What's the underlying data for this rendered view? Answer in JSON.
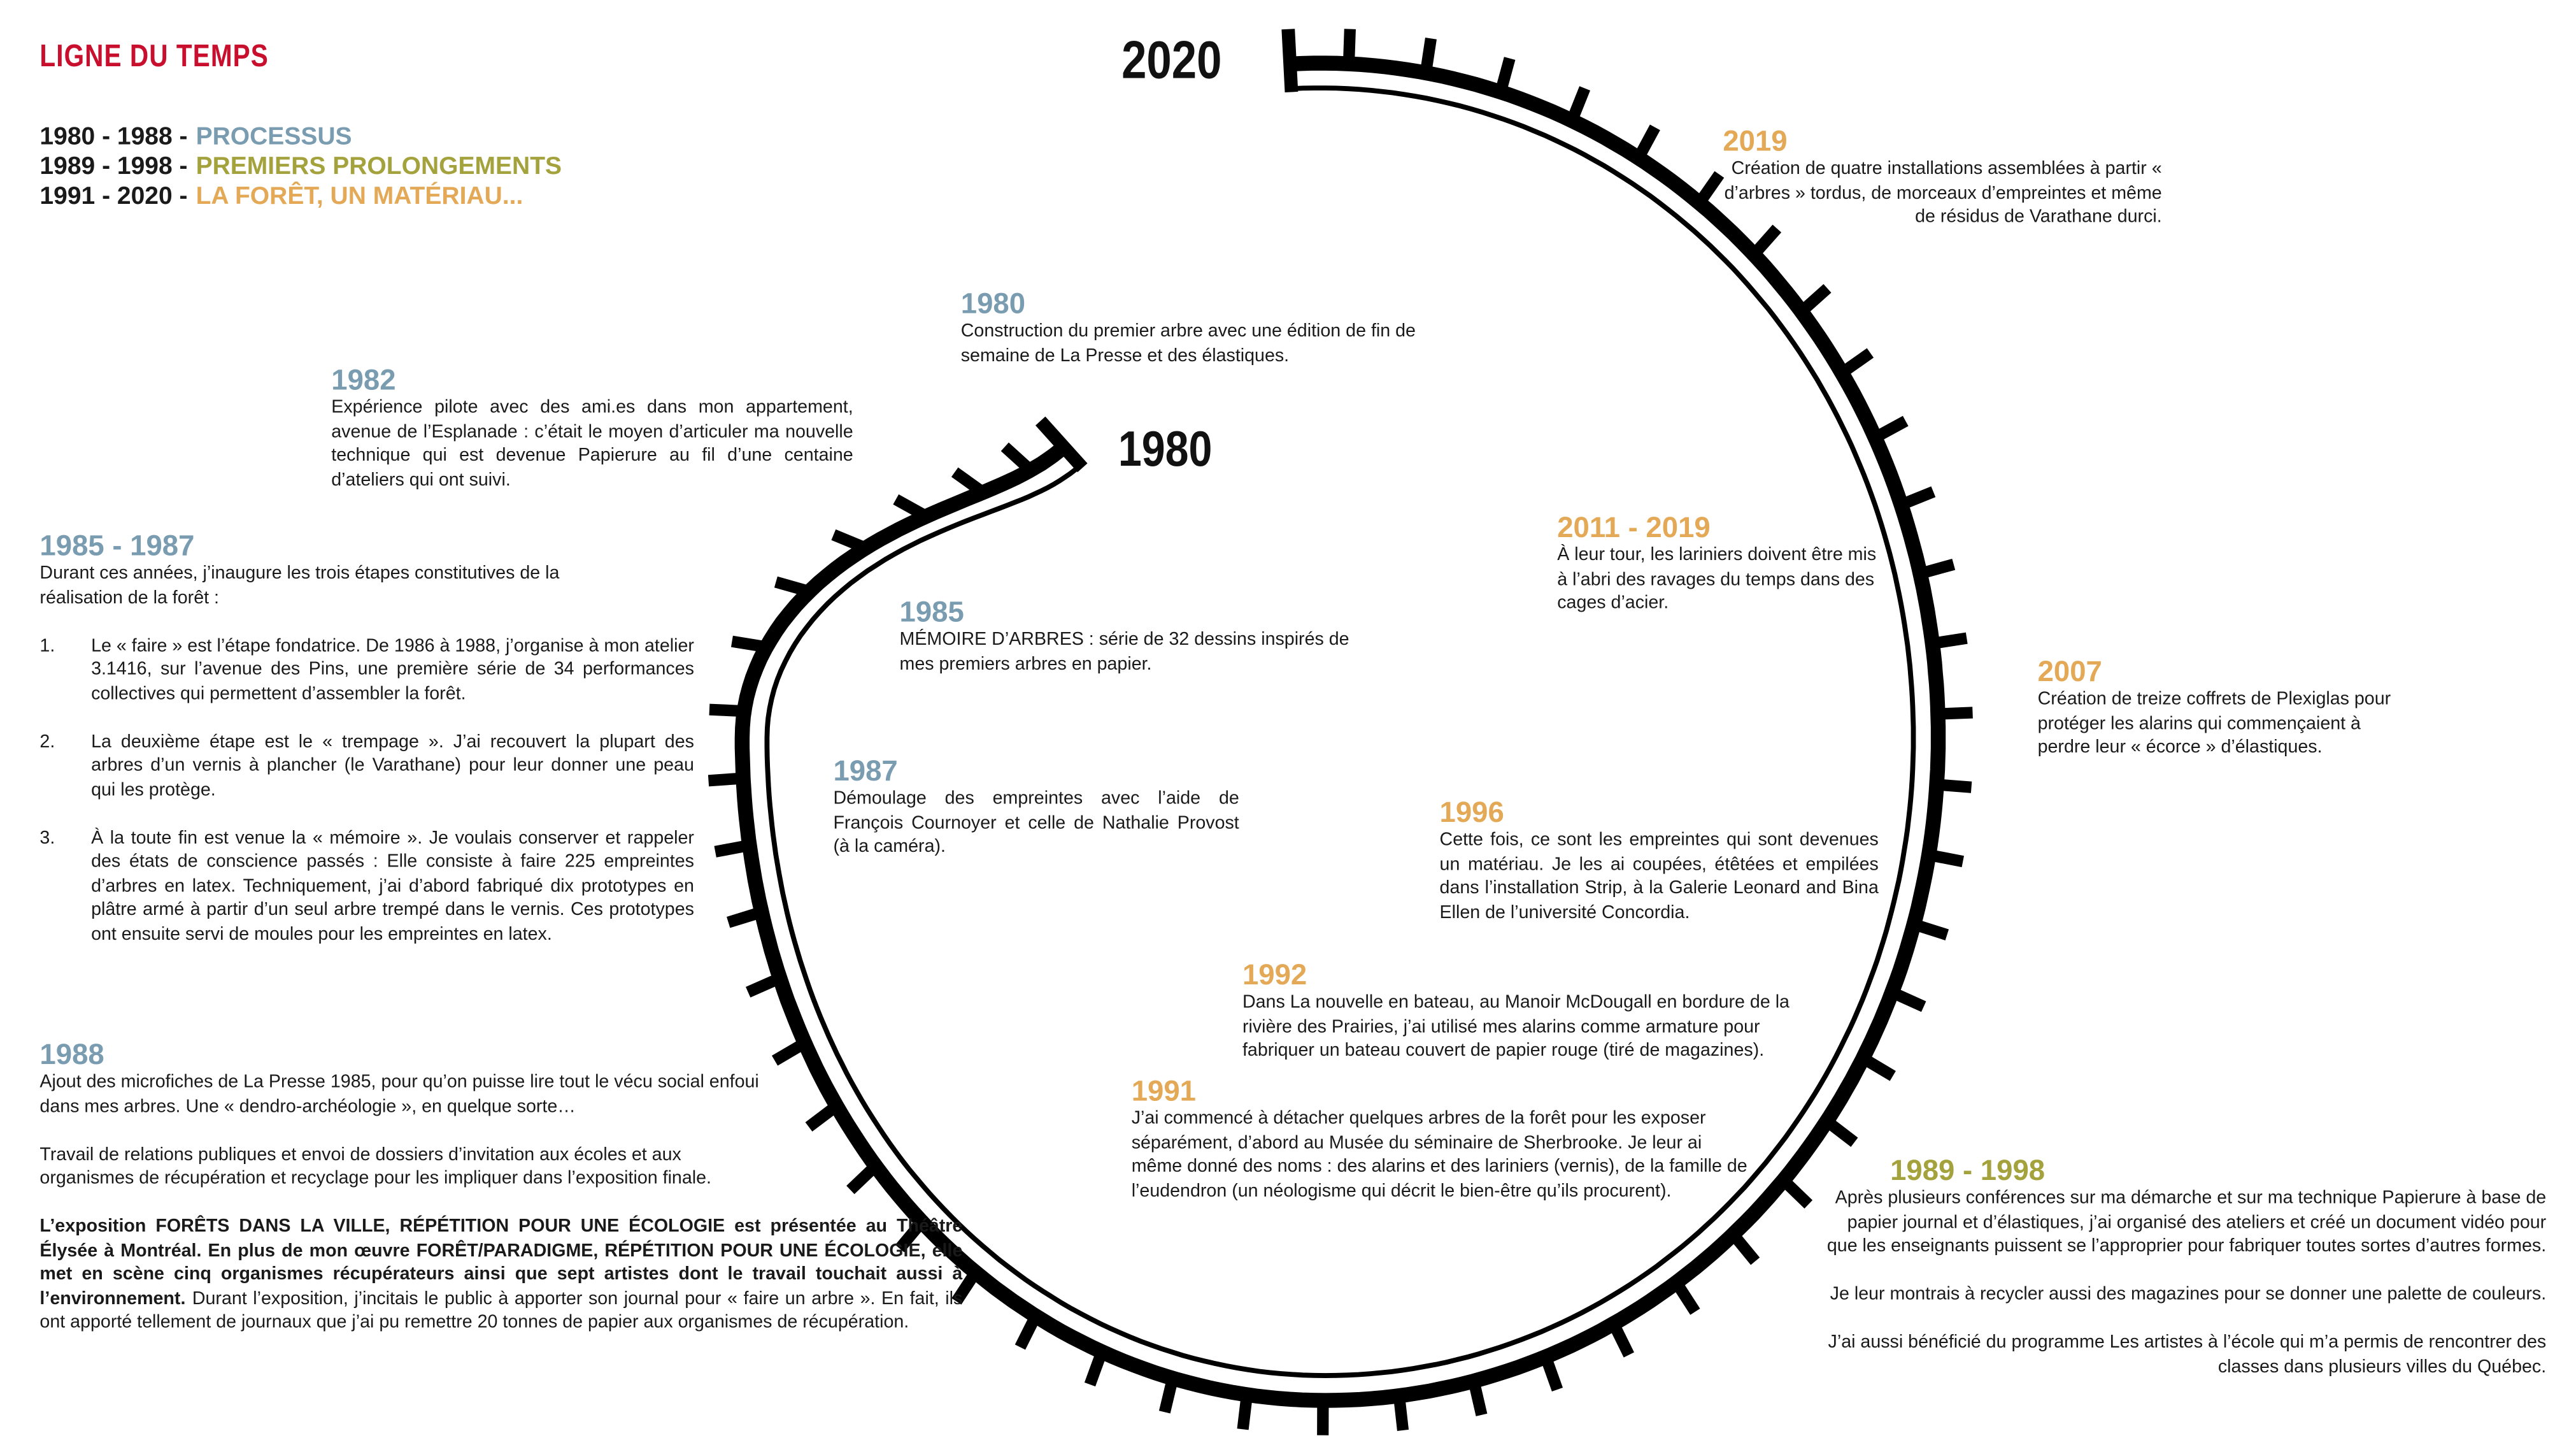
{
  "title": "LIGNE DU TEMPS",
  "legend": [
    {
      "years": "1980 - 1988 -",
      "label": "PROCESSUS",
      "color": "#7a9cb0"
    },
    {
      "years": "1989 - 1998 -",
      "label": "PREMIERS PROLONGEMENTS",
      "color": "#a3a23c"
    },
    {
      "years": "1991 - 2020 -",
      "label": "LA FORÊT, UN MATÉRIAU...",
      "color": "#e3a957"
    }
  ],
  "spiral_labels": [
    "2020",
    "1980"
  ],
  "entries": [
    {
      "year": "1980",
      "color": "#7a9cb0",
      "paragraphs": [
        "Construction du premier arbre avec une édition de fin de semaine de La Presse et des élastiques."
      ]
    },
    {
      "year": "1982",
      "color": "#7a9cb0",
      "paragraphs": [
        "Expérience pilote avec des ami.es dans mon appartement, avenue de l’Esplanade : c’était le moyen d’articuler ma nouvelle technique qui est devenue Papierure au fil d’une centaine d’ateliers qui ont suivi."
      ]
    },
    {
      "year": "1985 - 1987",
      "color": "#7a9cb0",
      "paragraphs": [
        "Durant ces années, j’inaugure les trois étapes constitutives de la réalisation de la forêt :"
      ],
      "items": [
        {
          "num": "1.",
          "text": "Le « faire » est l’étape fondatrice. De 1986 à 1988, j’organise à mon atelier 3.1416, sur l’avenue des Pins, une première série de 34 performances collectives qui permettent d’assembler la forêt."
        },
        {
          "num": "2.",
          "text": "La deuxième étape est le « trempage ». J’ai recouvert la plupart des arbres d’un vernis à plancher (le Varathane) pour leur donner une peau qui les protège."
        },
        {
          "num": "3.",
          "text": "À la toute fin est venue la « mémoire ». Je voulais conserver et rappeler des états de conscience passés : Elle consiste à faire 225 empreintes d’arbres en latex. Techniquement, j’ai d’abord fabriqué dix prototypes en plâtre armé à partir d’un seul arbre trempé dans le vernis. Ces prototypes ont ensuite servi de moules pour les empreintes en latex."
        }
      ]
    },
    {
      "year": "1985",
      "color": "#7a9cb0",
      "paragraphs": [
        "MÉMOIRE D’ARBRES : série de 32 dessins inspirés de mes premiers arbres en papier."
      ]
    },
    {
      "year": "1987",
      "color": "#7a9cb0",
      "paragraphs": [
        "Démoulage des empreintes avec l’aide de François Cournoyer et celle de Nathalie Provost (à la caméra)."
      ]
    },
    {
      "year": "1988",
      "color": "#7a9cb0",
      "paragraphs": [
        "Ajout des microfiches de La Presse 1985, pour qu’on puisse lire tout le vécu social enfoui dans mes arbres. Une « dendro-archéologie », en quelque sorte…",
        "Travail de relations publiques et envoi de dossiers d’invitation aux écoles et aux organismes de récupération et recyclage pour les impliquer dans l’exposition finale."
      ],
      "exhibition": {
        "highlight": "L’exposition FORÊTS DANS LA VILLE, RÉPÉTITION POUR UNE ÉCOLOGIE est présentée au Théâtre Élysée à Montréal. En plus de mon œuvre FORÊT/PARADIGME, RÉPÉTITION POUR UNE ÉCOLOGIE, elle met en scène cinq organismes récupérateurs ainsi que sept artistes dont le travail touchait aussi à l’environnement.",
        "text": "Durant l’exposition, j’incitais le public à apporter son journal pour « faire un arbre ». En fait, ils ont apporté tellement de journaux que j’ai pu remettre 20 tonnes de papier aux organismes de récupération."
      }
    },
    {
      "year": "2019",
      "color": "#e3a957",
      "paragraphs": [
        "Création de quatre installations assemblées à partir « d’arbres » tordus, de morceaux d’empreintes et même de résidus de Varathane durci."
      ]
    },
    {
      "year": "2011 - 2019",
      "color": "#e3a957",
      "paragraphs": [
        "À leur tour, les lariniers doivent être mis à l’abri des ravages du temps dans des cages d’acier."
      ]
    },
    {
      "year": "2007",
      "color": "#e3a957",
      "paragraphs": [
        "Création de treize coffrets de Plexiglas pour protéger les alarins qui commençaient à perdre leur « écorce » d’élastiques."
      ]
    },
    {
      "year": "1996",
      "color": "#e3a957",
      "paragraphs": [
        "Cette fois, ce sont les empreintes qui sont devenues un matériau. Je les ai coupées, étêtées et empilées dans l’installation Strip, à la Galerie Leonard and Bina Ellen de l’université Concordia."
      ]
    },
    {
      "year": "1992",
      "color": "#e3a957",
      "paragraphs": [
        "Dans La nouvelle en bateau, au Manoir McDougall en bordure de la rivière des Prairies, j’ai utilisé mes alarins comme armature pour fabriquer un bateau couvert de papier rouge (tiré de magazines)."
      ]
    },
    {
      "year": "1991",
      "color": "#e3a957",
      "paragraphs": [
        "J’ai commencé à détacher quelques arbres de la forêt pour les exposer séparément, d’abord au Musée du séminaire de Sherbrooke. Je leur ai même donné des noms : des alarins et des lariniers (vernis), de la famille de l’eudendron (un néologisme qui décrit le bien-être qu’ils procurent)."
      ]
    },
    {
      "year": "1989 - 1998",
      "color": "#a3a23c",
      "paragraphs": [
        "Après plusieurs conférences sur ma démarche et sur ma technique Papierure à base de papier journal et d’élastiques, j’ai organisé des ateliers et créé un document vidéo pour que les enseignants puissent se l’approprier pour fabriquer toutes sortes d’autres formes.",
        "Je leur montrais à recycler aussi des magazines pour se donner une palette de couleurs.",
        "J’ai aussi bénéficié du programme Les artistes à l’école qui m’a permis de rencontrer des classes dans plusieurs villes du Québec."
      ]
    }
  ]
}
